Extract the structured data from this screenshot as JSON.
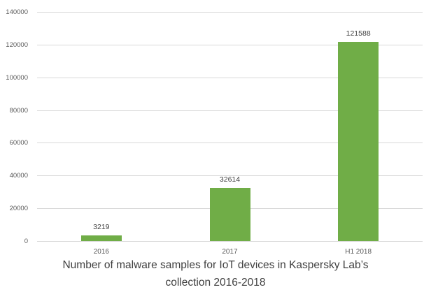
{
  "chart_data": {
    "type": "bar",
    "categories": [
      "2016",
      "2017",
      "H1 2018"
    ],
    "values": [
      3219,
      32614,
      121588
    ],
    "data_labels": [
      "3219",
      "32614",
      "121588"
    ],
    "title": "Number of malware samples for IoT devices in Kaspersky Lab’s collection 2016-2018",
    "title_lines": [
      "Number of malware samples for IoT devices in Kaspersky Lab’s",
      "collection 2016-2018"
    ],
    "xlabel": "",
    "ylabel": "",
    "ylim": [
      0,
      140000
    ],
    "yticks": [
      0,
      20000,
      40000,
      60000,
      80000,
      100000,
      120000,
      140000
    ],
    "ytick_labels": [
      "0",
      "20000",
      "40000",
      "60000",
      "80000",
      "100000",
      "120000",
      "140000"
    ],
    "grid": true,
    "legend": "none",
    "colors": {
      "bar": "#70AD47",
      "gridline": "#D9D9D9",
      "axis_line": "#D6D6D6",
      "tick_label": "#595959",
      "data_label": "#404040",
      "title": "#404040"
    }
  }
}
